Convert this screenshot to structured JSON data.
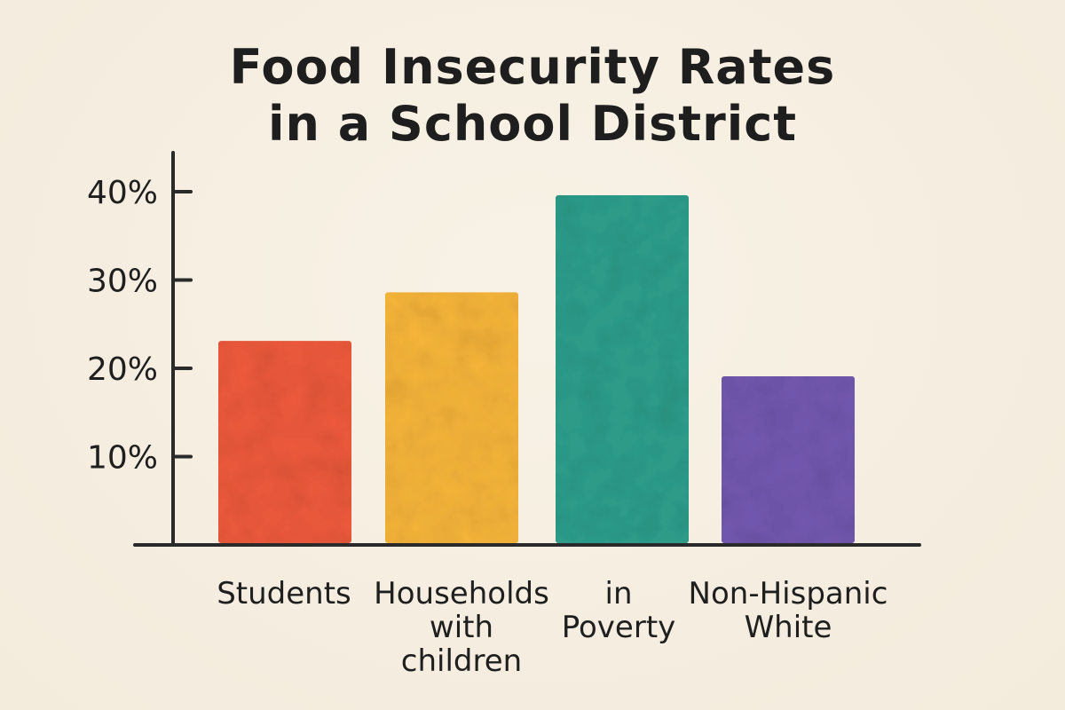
{
  "chart_data": {
    "type": "bar",
    "title_lines": [
      "Food Insecurity Rates",
      "in a School District"
    ],
    "categories": [
      [
        "Students"
      ],
      [
        "Households",
        "with",
        "children"
      ],
      [
        "in",
        "Poverty"
      ],
      [
        "Non-Hispanic",
        "White"
      ]
    ],
    "values": [
      23,
      28.5,
      39.5,
      19
    ],
    "colors": [
      "#ee5a3c",
      "#f7b53a",
      "#2e9e8c",
      "#7358b0"
    ],
    "yticks": [
      {
        "value": 10,
        "label": "10%"
      },
      {
        "value": 20,
        "label": "20%"
      },
      {
        "value": 30,
        "label": "30%"
      },
      {
        "value": 40,
        "label": "40%"
      }
    ],
    "ylim": [
      0,
      40
    ],
    "xlabel": "",
    "ylabel": "",
    "grid": false,
    "legend": "none"
  }
}
